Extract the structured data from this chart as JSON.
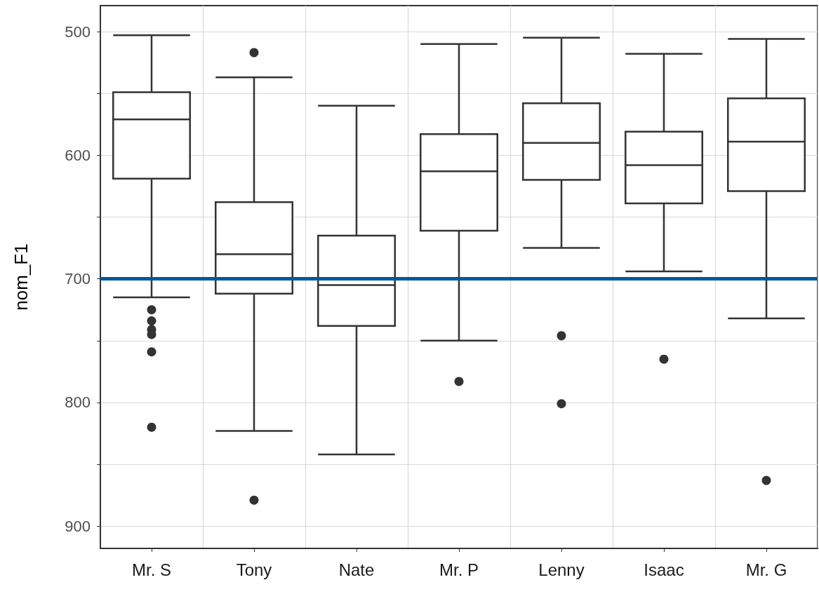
{
  "chart_data": {
    "type": "box",
    "ylabel": "nom_F1",
    "categories": [
      "Mr. S",
      "Tony",
      "Nate",
      "Mr. P",
      "Lenny",
      "Isaac",
      "Mr. G"
    ],
    "boxes": [
      {
        "low": 503,
        "q1": 549,
        "median": 571,
        "q3": 619,
        "high": 715,
        "outliers": [
          725,
          734,
          741,
          745,
          759,
          820
        ]
      },
      {
        "low": 537,
        "q1": 638,
        "median": 680,
        "q3": 712,
        "high": 823,
        "outliers": [
          517,
          879
        ]
      },
      {
        "low": 560,
        "q1": 665,
        "median": 705,
        "q3": 738,
        "high": 842
      },
      {
        "low": 510,
        "q1": 583,
        "median": 613,
        "q3": 661,
        "high": 750,
        "outliers": [
          783
        ]
      },
      {
        "low": 505,
        "q1": 558,
        "median": 590,
        "q3": 620,
        "high": 675,
        "outliers": [
          746,
          801
        ]
      },
      {
        "low": 518,
        "q1": 581,
        "median": 608,
        "q3": 639,
        "high": 694,
        "outliers": [
          765
        ]
      },
      {
        "low": 506,
        "q1": 554,
        "median": 589,
        "q3": 629,
        "high": 732,
        "outliers": [
          863
        ]
      }
    ],
    "color": "#333333",
    "ylim": [
      918,
      479
    ],
    "yticks": [
      500,
      {
        "value": 550,
        "label": null
      },
      600,
      {
        "value": 650,
        "label": null
      },
      700,
      {
        "value": 750,
        "label": null
      },
      800,
      {
        "value": 850,
        "label": null
      },
      900
    ],
    "ref_lines": [
      {
        "axis": "y",
        "value": 700,
        "color": "#00589c"
      }
    ],
    "grid": true,
    "legend": false
  }
}
